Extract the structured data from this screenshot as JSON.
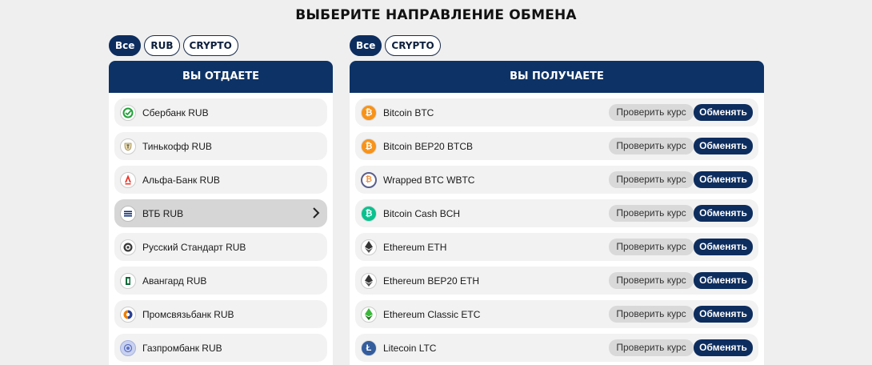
{
  "page": {
    "title": "ВЫБЕРИТЕ НАПРАВЛЕНИЕ ОБМЕНА"
  },
  "give": {
    "filters": [
      "Все",
      "RUB",
      "CRYPTO"
    ],
    "active_filter": "Все",
    "header": "ВЫ ОТДАЕТЕ",
    "selected": "ВТБ RUB",
    "items": [
      {
        "label": "Сбербанк RUB",
        "icon": "sberbank-icon"
      },
      {
        "label": "Тинькофф RUB",
        "icon": "tinkoff-icon"
      },
      {
        "label": "Альфа-Банк RUB",
        "icon": "alfa-bank-icon"
      },
      {
        "label": "ВТБ RUB",
        "icon": "vtb-icon"
      },
      {
        "label": "Русский Стандарт RUB",
        "icon": "russian-standard-icon"
      },
      {
        "label": "Авангард RUB",
        "icon": "avangard-icon"
      },
      {
        "label": "Промсвязьбанк RUB",
        "icon": "psb-icon"
      },
      {
        "label": "Газпромбанк RUB",
        "icon": "gazprombank-icon"
      }
    ]
  },
  "get": {
    "filters": [
      "Все",
      "CRYPTO"
    ],
    "active_filter": "Все",
    "header": "ВЫ ПОЛУЧАЕТЕ",
    "check_label": "Проверить курс",
    "exchange_label": "Обменять",
    "items": [
      {
        "label": "Bitcoin BTC",
        "icon": "bitcoin-icon"
      },
      {
        "label": "Bitcoin BEP20 BTCB",
        "icon": "bitcoin-bep20-icon"
      },
      {
        "label": "Wrapped BTC WBTC",
        "icon": "wrapped-btc-icon"
      },
      {
        "label": "Bitcoin Cash BCH",
        "icon": "bitcoin-cash-icon"
      },
      {
        "label": "Ethereum ETH",
        "icon": "ethereum-icon"
      },
      {
        "label": "Ethereum BEP20 ETH",
        "icon": "ethereum-bep20-icon"
      },
      {
        "label": "Ethereum Classic ETC",
        "icon": "ethereum-classic-icon"
      },
      {
        "label": "Litecoin LTC",
        "icon": "litecoin-icon"
      }
    ]
  },
  "colors": {
    "brand_navy": "#0d3266",
    "button_navy": "#0d2d5e",
    "row_bg": "#f2f2f2",
    "row_selected": "#d6d6d6",
    "bitcoin_orange": "#f7931a",
    "bch_green": "#0ac18e",
    "etc_green": "#3ab83a",
    "litecoin_blue": "#345d9d"
  }
}
